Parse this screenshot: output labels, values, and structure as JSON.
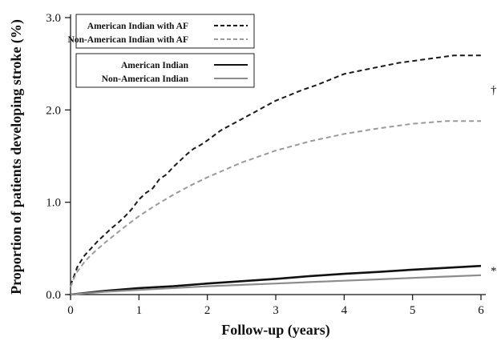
{
  "chart_data": {
    "type": "line",
    "xlabel": "Follow-up (years)",
    "ylabel": "Proportion of patients developing stroke (%)",
    "xlim": [
      0,
      6
    ],
    "ylim": [
      0,
      3.0
    ],
    "x_ticks": [
      0,
      1,
      2,
      3,
      4,
      5,
      6
    ],
    "y_ticks": [
      0.0,
      1.0,
      2.0,
      3.0
    ],
    "x_tick_labels": [
      "0",
      "1",
      "2",
      "3",
      "4",
      "5",
      "6"
    ],
    "y_tick_labels": [
      "0.0",
      "1.0",
      "2.0",
      "3.0"
    ],
    "grid": false,
    "legend_placement": "top-left",
    "legends": [
      {
        "entries": [
          "American Indian with AF",
          "Non-American Indian with AF"
        ]
      },
      {
        "entries": [
          "American Indian",
          "Non-American Indian"
        ]
      }
    ],
    "annotations": [
      {
        "text": "†",
        "x": 6.1,
        "y": 2.22
      },
      {
        "text": "*",
        "x": 6.1,
        "y": 0.26
      }
    ],
    "series": [
      {
        "name": "American Indian with AF",
        "color": "#1a1a1a",
        "style": "dashed",
        "x": [
          0,
          0.05,
          0.1,
          0.2,
          0.3,
          0.4,
          0.5,
          0.6,
          0.7,
          0.8,
          0.9,
          1.0,
          1.1,
          1.2,
          1.3,
          1.4,
          1.5,
          1.6,
          1.7,
          1.8,
          1.9,
          2.0,
          2.2,
          2.4,
          2.6,
          2.8,
          3.0,
          3.2,
          3.4,
          3.6,
          3.8,
          4.0,
          4.2,
          4.4,
          4.6,
          4.8,
          5.0,
          5.2,
          5.4,
          5.6,
          5.8,
          6.0
        ],
        "y": [
          0.1,
          0.2,
          0.3,
          0.42,
          0.5,
          0.58,
          0.65,
          0.72,
          0.78,
          0.85,
          0.93,
          1.03,
          1.1,
          1.15,
          1.25,
          1.3,
          1.38,
          1.45,
          1.52,
          1.58,
          1.62,
          1.67,
          1.78,
          1.86,
          1.94,
          2.02,
          2.1,
          2.16,
          2.22,
          2.27,
          2.33,
          2.39,
          2.42,
          2.45,
          2.48,
          2.51,
          2.53,
          2.55,
          2.57,
          2.59,
          2.59,
          2.59
        ]
      },
      {
        "name": "Non-American Indian with AF",
        "color": "#9a9a9a",
        "style": "dashed",
        "x": [
          0,
          0.05,
          0.1,
          0.2,
          0.3,
          0.5,
          0.75,
          1.0,
          1.25,
          1.5,
          1.75,
          2.0,
          2.5,
          3.0,
          3.5,
          4.0,
          4.5,
          5.0,
          5.5,
          6.0
        ],
        "y": [
          0.08,
          0.18,
          0.25,
          0.35,
          0.43,
          0.56,
          0.71,
          0.85,
          0.97,
          1.08,
          1.18,
          1.27,
          1.43,
          1.56,
          1.66,
          1.74,
          1.8,
          1.85,
          1.88,
          1.88
        ]
      },
      {
        "name": "American Indian",
        "color": "#111111",
        "style": "solid",
        "x": [
          0,
          0.5,
          1,
          1.5,
          2,
          2.5,
          3,
          3.5,
          4,
          4.5,
          5,
          5.5,
          6
        ],
        "y": [
          0.0,
          0.04,
          0.07,
          0.09,
          0.12,
          0.145,
          0.17,
          0.2,
          0.225,
          0.245,
          0.27,
          0.29,
          0.31
        ]
      },
      {
        "name": "Non-American Indian",
        "color": "#8c8c8c",
        "style": "solid",
        "x": [
          0,
          0.5,
          1,
          1.5,
          2,
          2.5,
          3,
          3.5,
          4,
          4.5,
          5,
          5.5,
          6
        ],
        "y": [
          0.0,
          0.03,
          0.05,
          0.07,
          0.09,
          0.105,
          0.12,
          0.135,
          0.15,
          0.165,
          0.18,
          0.195,
          0.21
        ]
      }
    ]
  }
}
